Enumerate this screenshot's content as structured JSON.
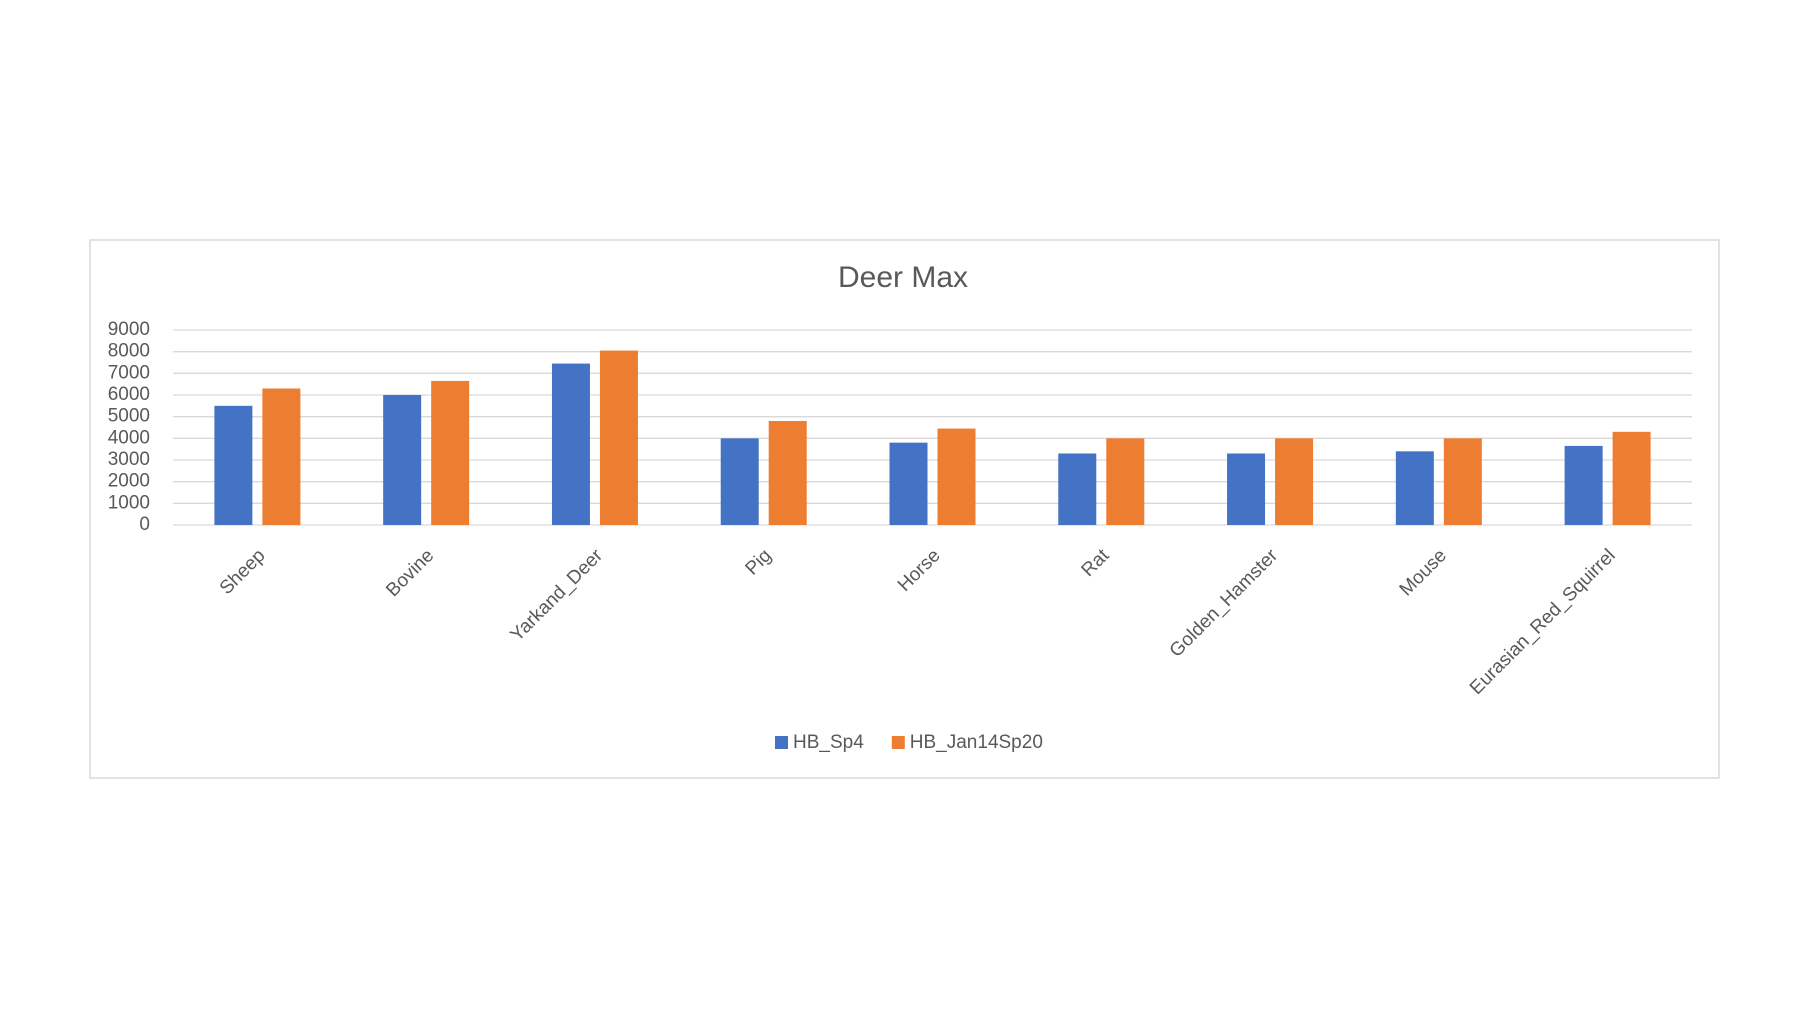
{
  "chart_data": {
    "type": "bar",
    "title": "Deer Max",
    "categories": [
      "Sheep",
      "Bovine",
      "Yarkand_Deer",
      "Pig",
      "Horse",
      "Rat",
      "Golden_Hamster",
      "Mouse",
      "Eurasian_Red_Squirrel"
    ],
    "series": [
      {
        "name": "HB_Sp4",
        "color": "#4472c4",
        "values": [
          5500,
          6000,
          7450,
          4000,
          3800,
          3300,
          3300,
          3400,
          3650
        ]
      },
      {
        "name": "HB_Jan14Sp20",
        "color": "#ed7d31",
        "values": [
          6300,
          6650,
          8050,
          4800,
          4450,
          4000,
          4000,
          4000,
          4300
        ]
      }
    ],
    "ylim": [
      0,
      9000
    ],
    "yticks": [
      0,
      1000,
      2000,
      3000,
      4000,
      5000,
      6000,
      7000,
      8000,
      9000
    ],
    "grid": true,
    "legend": "bottom"
  }
}
